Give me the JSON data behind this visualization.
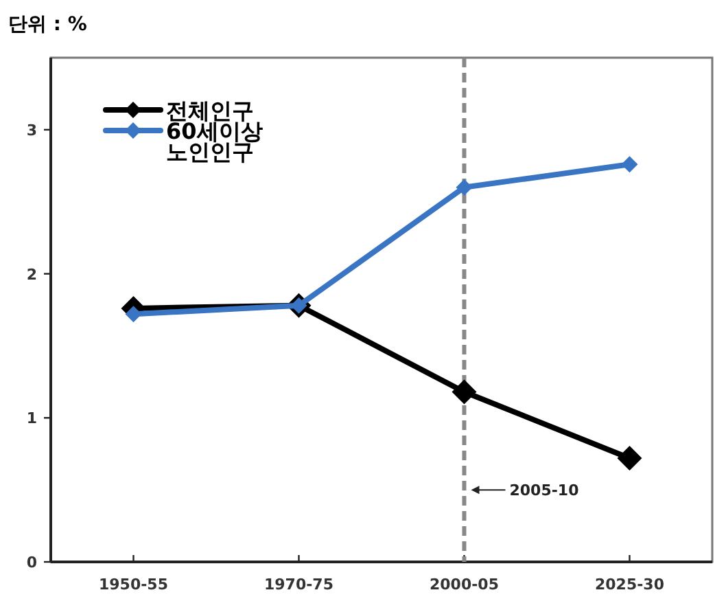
{
  "chart_data": {
    "type": "line",
    "title": "단위 : %",
    "categories": [
      "1950-55",
      "1970-75",
      "2000-05",
      "2025-30"
    ],
    "series": [
      {
        "name": "전체인구",
        "color": "#000000",
        "values": [
          1.76,
          1.78,
          1.18,
          0.72
        ]
      },
      {
        "name": "60세이상 노인인구",
        "color": "#3a75c4",
        "values": [
          1.72,
          1.78,
          2.6,
          2.76
        ]
      }
    ],
    "ylim": [
      0,
      3.5
    ],
    "yticks": [
      0,
      1,
      2,
      3
    ],
    "ref_lines": [
      {
        "axis": "x",
        "value": "2000-05",
        "label": "2005-10",
        "color": "#888888",
        "line_style": "dashed"
      }
    ],
    "marker": "diamond",
    "line_style": "solid",
    "legend": "top left",
    "grid": false
  }
}
